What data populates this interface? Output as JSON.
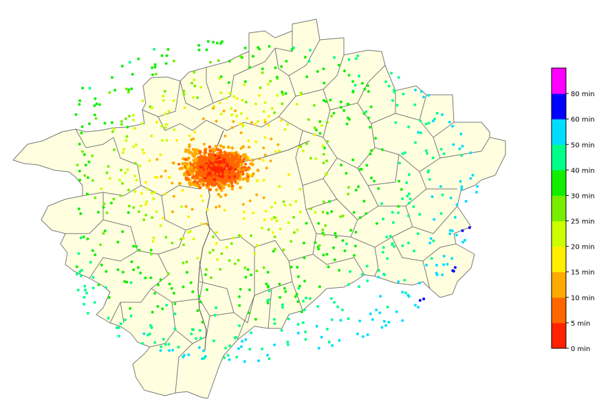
{
  "colorbar": {
    "labels": [
      "0 min",
      "5 min",
      "10 min",
      "15 min",
      "20 min",
      "25 min",
      "30 min",
      "40 min",
      "50 min",
      "60 min",
      "80 min"
    ],
    "colors": [
      "#ff2200",
      "#ff6600",
      "#ffaa00",
      "#ffee00",
      "#ccff00",
      "#77ee00",
      "#11ee00",
      "#00ff88",
      "#00ddff",
      "#0000ff",
      "#ff00ff"
    ]
  },
  "map": {
    "land_color": "#ffffe0",
    "border_color": "#777777"
  }
}
